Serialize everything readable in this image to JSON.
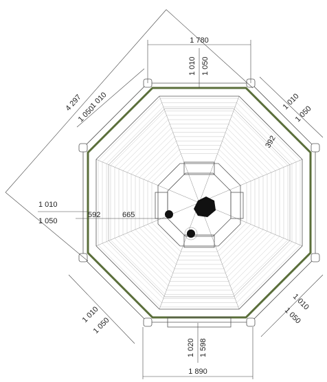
{
  "drawing": {
    "dimensions": {
      "top_overall": "1 780",
      "top_inner_a": "1 010",
      "top_inner_b": "1 050",
      "diagonal_overall": "4 297",
      "upper_left_a": "1 010",
      "upper_left_b": "1 050",
      "upper_right_a": "1 010",
      "upper_right_b": "1 050",
      "upper_right_small": "392",
      "left_a": "1 010",
      "left_b": "1 050",
      "left_inner_1": "592",
      "left_inner_2": "665",
      "lower_left_a": "1 010",
      "lower_left_b": "1 050",
      "lower_right_a": "1 010",
      "lower_right_b": "1 050",
      "bottom_a": "1 020",
      "bottom_b": "1 598",
      "bottom_overall": "1 890"
    },
    "colors": {
      "wall": "#5a6e3a",
      "lines": "#555555",
      "center": "#111111"
    }
  }
}
